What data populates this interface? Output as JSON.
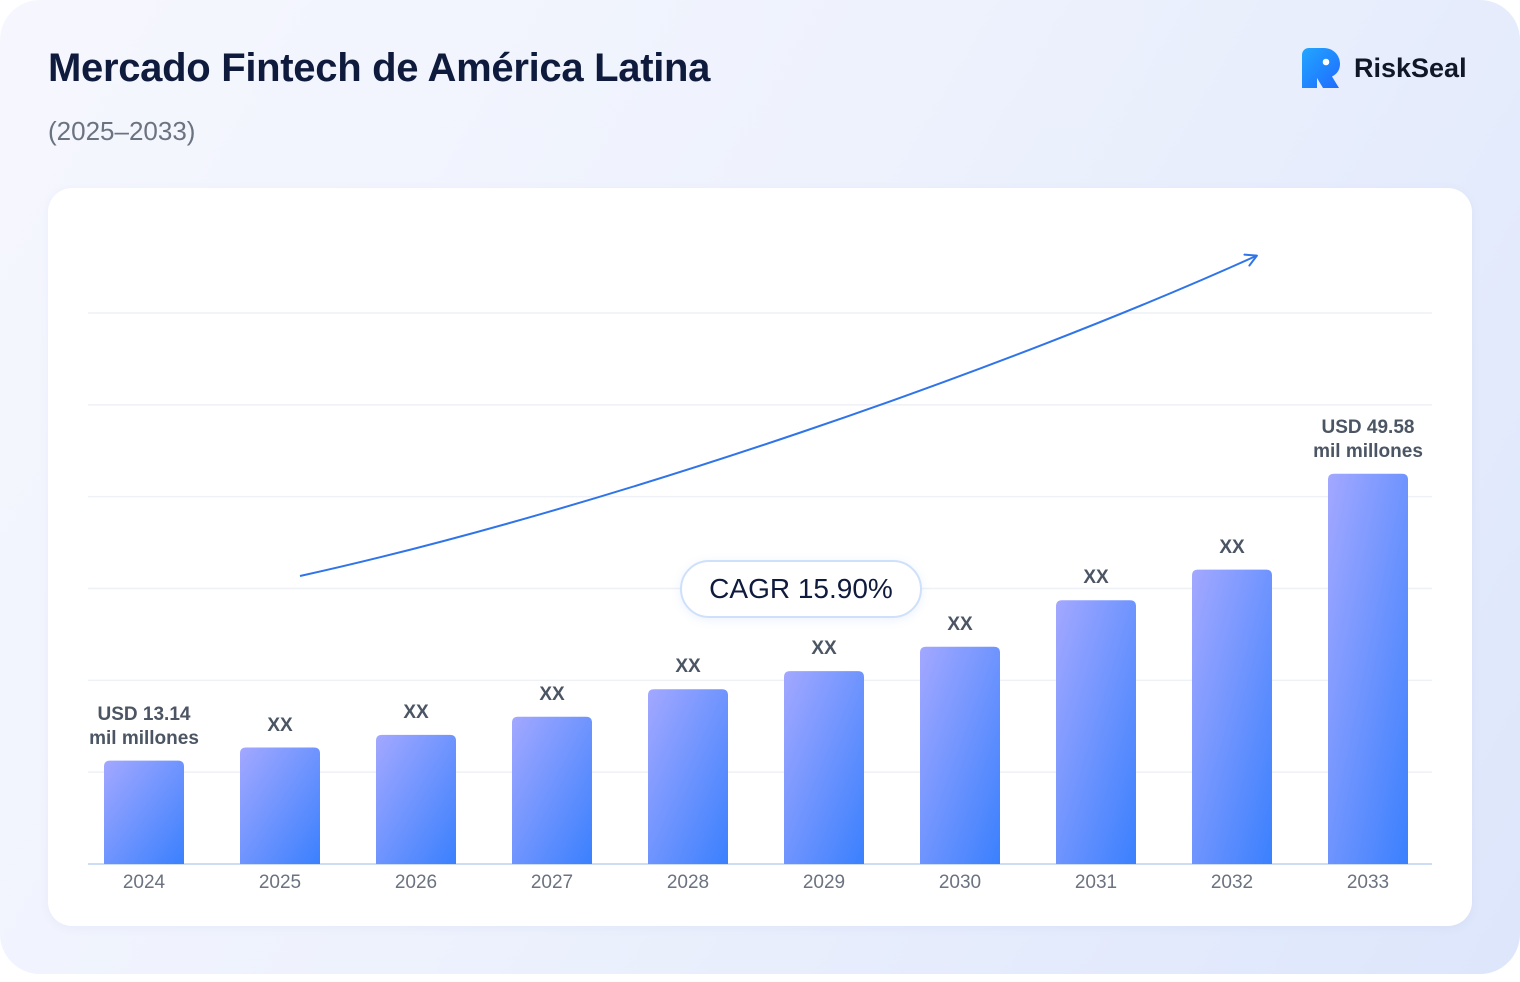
{
  "header": {
    "title": "Mercado Fintech de América Latina",
    "subtitle": "(2025–2033)",
    "brand": "RiskSeal"
  },
  "colors": {
    "bar_top_left": "#a3a8ff",
    "bar_bottom_right": "#3a80fe",
    "trend_arrow": "#2f74e8",
    "grid": "#eef1f6",
    "axis": "#bcd2f0"
  },
  "chart_data": {
    "type": "bar",
    "categories": [
      "2024",
      "2025",
      "2026",
      "2027",
      "2028",
      "2029",
      "2030",
      "2031",
      "2032",
      "2033"
    ],
    "values": [
      13.14,
      14.8,
      16.4,
      18.7,
      22.2,
      24.5,
      27.6,
      33.5,
      37.4,
      49.58
    ],
    "value_labels": [
      [
        "USD 13.14",
        "mil millones"
      ],
      [
        "XX"
      ],
      [
        "XX"
      ],
      [
        "XX"
      ],
      [
        "XX"
      ],
      [
        "XX"
      ],
      [
        "XX"
      ],
      [
        "XX"
      ],
      [
        "XX"
      ],
      [
        "USD 49.58",
        "mil millones"
      ]
    ],
    "title": "Mercado Fintech de América Latina",
    "subtitle": "(2025–2033)",
    "xlabel": "",
    "ylabel": "",
    "ylim": [
      0,
      70
    ],
    "grid": true,
    "annotation": "CAGR 15.90%"
  }
}
